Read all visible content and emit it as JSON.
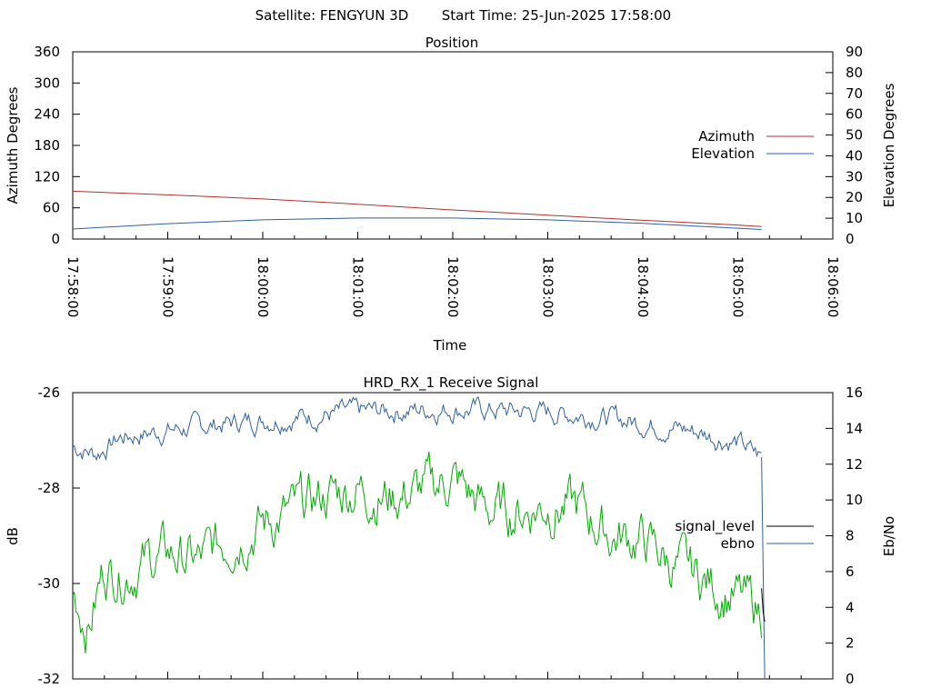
{
  "page": {
    "satellite_label": "Satellite: FENGYUN 3D",
    "start_time_label": "Start Time: 25-Jun-2025 17:58:00"
  },
  "chart_data": [
    {
      "type": "line",
      "title": "Position",
      "xlabel": "Time",
      "ylabel_left": "Azimuth Degrees",
      "ylabel_right": "Elevation Degrees",
      "x_ticks": [
        "17:58:00",
        "17:59:00",
        "18:00:00",
        "18:01:00",
        "18:02:00",
        "18:03:00",
        "18:04:00",
        "18:05:00",
        "18:06:00"
      ],
      "xlim": [
        "17:58:00",
        "18:06:00"
      ],
      "ylim_left": [
        0,
        360
      ],
      "yticks_left": [
        0,
        60,
        120,
        180,
        240,
        300,
        360
      ],
      "ylim_right": [
        0,
        90
      ],
      "yticks_right": [
        0,
        10,
        20,
        30,
        40,
        50,
        60,
        70,
        80,
        90
      ],
      "grid": false,
      "legend_position": "right",
      "series": [
        {
          "name": "Azimuth",
          "axis": "left",
          "color": "#b03030",
          "x": [
            "17:58:00",
            "17:59:00",
            "18:00:00",
            "18:01:00",
            "18:02:00",
            "18:03:00",
            "18:04:00",
            "18:05:00",
            "18:05:15"
          ],
          "values": [
            92,
            85,
            77,
            67,
            56,
            46,
            36,
            27,
            24
          ]
        },
        {
          "name": "Elevation",
          "axis": "right",
          "color": "#3060a0",
          "x": [
            "17:58:00",
            "17:59:00",
            "18:00:00",
            "18:01:00",
            "18:02:00",
            "18:03:00",
            "18:04:00",
            "18:05:00",
            "18:05:15"
          ],
          "values": [
            4.8,
            7.4,
            9.2,
            10.1,
            10.1,
            9.2,
            7.5,
            5.2,
            4.6
          ]
        }
      ]
    },
    {
      "type": "line",
      "title": "HRD_RX_1 Receive Signal",
      "ylabel_left": "dB",
      "ylabel_right": "Eb/No",
      "xlim": [
        "17:58:00",
        "18:06:00"
      ],
      "ylim_left": [
        -32,
        -26
      ],
      "yticks_left": [
        -32,
        -30,
        -28,
        -26
      ],
      "ylim_right": [
        0,
        16
      ],
      "yticks_right": [
        0,
        2,
        4,
        6,
        8,
        10,
        12,
        14,
        16
      ],
      "grid": false,
      "legend_position": "right",
      "series": [
        {
          "name": "signal_level",
          "axis": "left",
          "color": "#000000",
          "x": [
            "18:05:15",
            "18:05:16",
            "18:05:17"
          ],
          "values": [
            -30.1,
            -30.6,
            -30.8
          ]
        },
        {
          "name": "ebno",
          "axis": "right",
          "color": "#3060a0",
          "x": [
            "17:58:00",
            "17:58:15",
            "17:58:30",
            "17:59:00",
            "17:59:30",
            "18:00:00",
            "18:00:30",
            "18:01:00",
            "18:01:30",
            "18:02:00",
            "18:02:30",
            "18:03:00",
            "18:03:30",
            "18:04:00",
            "18:04:30",
            "18:05:00",
            "18:05:10",
            "18:05:15",
            "18:05:17"
          ],
          "values": [
            13.0,
            12.6,
            13.5,
            13.9,
            14.2,
            14.5,
            14.7,
            14.9,
            15.0,
            15.1,
            15.0,
            14.9,
            14.7,
            14.3,
            13.9,
            13.2,
            12.6,
            12.4,
            0.0
          ]
        },
        {
          "color": "#00aa00",
          "axis": "right",
          "x": [
            "17:58:00",
            "17:58:10",
            "17:58:20",
            "17:58:30",
            "17:59:00",
            "17:59:20",
            "17:59:40",
            "18:00:00",
            "18:00:20",
            "18:00:40",
            "18:01:00",
            "18:01:20",
            "18:01:40",
            "18:02:00",
            "18:02:20",
            "18:02:40",
            "18:03:00",
            "18:03:20",
            "18:03:40",
            "18:04:00",
            "18:04:20",
            "18:04:40",
            "18:05:00",
            "18:05:15"
          ],
          "values": [
            5.0,
            3.0,
            6.2,
            6.0,
            7.0,
            6.5,
            8.0,
            8.7,
            9.3,
            10.3,
            10.7,
            10.2,
            10.5,
            11.2,
            9.5,
            9.3,
            9.8,
            9.5,
            8.0,
            7.8,
            6.3,
            5.5,
            4.5,
            3.8
          ]
        }
      ]
    }
  ]
}
